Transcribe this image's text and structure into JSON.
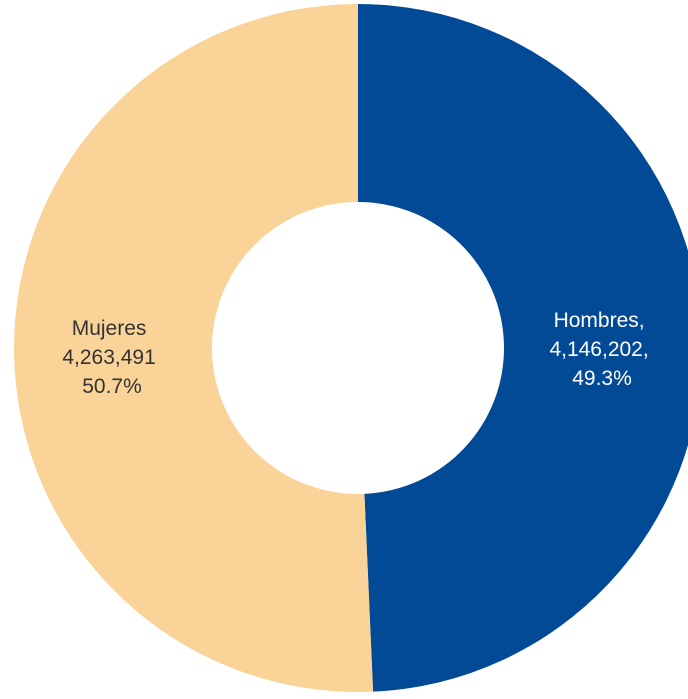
{
  "chart_data": {
    "type": "pie",
    "donut": true,
    "title": "",
    "legend": "none",
    "slices": [
      {
        "name": "Hombres",
        "value": 4146202,
        "percent": 49.3,
        "color": "#034A96",
        "label_color": "#ffffff",
        "label_lines": [
          "Hombres,",
          "4,146,202,",
          "49.3%"
        ]
      },
      {
        "name": "Mujeres",
        "value": 4263491,
        "percent": 50.7,
        "color": "#F9D398",
        "label_color": "#333333",
        "label_lines": [
          "Mujeres",
          "4,263,491",
          "50.7%"
        ]
      }
    ]
  }
}
